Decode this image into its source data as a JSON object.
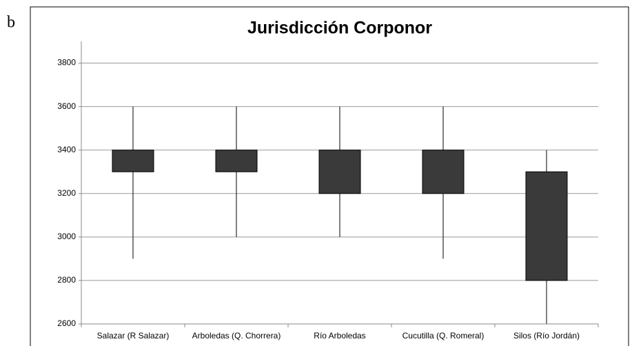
{
  "panel_label": "b",
  "chart_data": {
    "type": "box",
    "title": "Jurisdicción Corponor",
    "categories": [
      "Salazar (R Salazar)",
      "Arboledas (Q.  Chorrera)",
      "Río Arboledas",
      "Cucutilla (Q. Romeral)",
      "Silos (Río Jordán)"
    ],
    "min": [
      2900,
      3000,
      3000,
      2900,
      2600
    ],
    "q1": [
      3300,
      3300,
      3200,
      3200,
      2800
    ],
    "q3": [
      3400,
      3400,
      3400,
      3400,
      3300
    ],
    "max": [
      3600,
      3600,
      3600,
      3600,
      3400
    ],
    "color": "#3a3a3a",
    "ylim": [
      2600,
      3900
    ],
    "yticks": [
      2600,
      2800,
      3000,
      3200,
      3400,
      3600,
      3800
    ],
    "grid": true
  }
}
